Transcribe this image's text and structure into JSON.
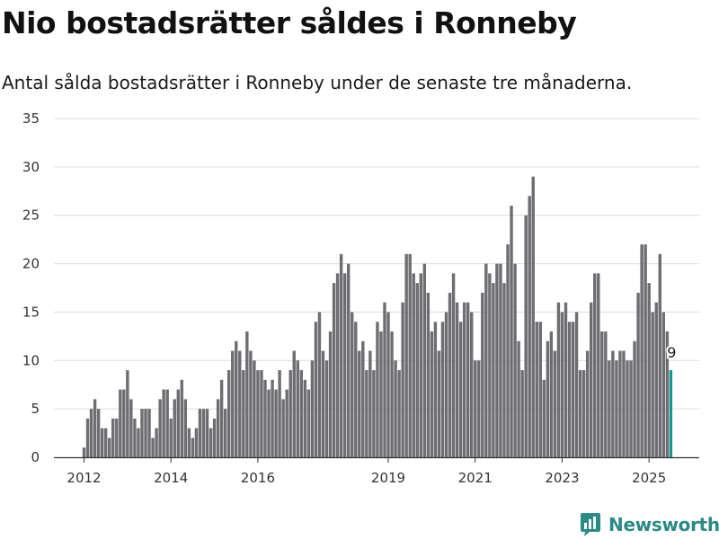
{
  "title": "Nio bostadsrätter såldes i Ronneby",
  "subtitle": "Antal sålda bostadsrätter i Ronneby under de senaste tre månaderna.",
  "brand": {
    "name": "Newsworthy",
    "icon": "newsworthy-logo-icon",
    "color": "#2a8a86"
  },
  "chart_data": {
    "type": "bar",
    "ylim": [
      0,
      35
    ],
    "yticks": [
      "0",
      "5",
      "10",
      "15",
      "20",
      "25",
      "30",
      "35"
    ],
    "xticks": [
      {
        "label": "2012",
        "month_index": 0
      },
      {
        "label": "2014",
        "month_index": 24
      },
      {
        "label": "2016",
        "month_index": 48
      },
      {
        "label": "2019",
        "month_index": 84
      },
      {
        "label": "2021",
        "month_index": 108
      },
      {
        "label": "2023",
        "month_index": 132
      },
      {
        "label": "2025",
        "month_index": 156
      }
    ],
    "start_month": "2012-01",
    "grid": true,
    "bar_color": "#6e6d72",
    "highlight_color": "#1a9590",
    "highlight_index": 162,
    "last_value_label": "9",
    "values": [
      1,
      4,
      5,
      6,
      5,
      3,
      3,
      2,
      4,
      4,
      7,
      7,
      9,
      6,
      4,
      3,
      5,
      5,
      5,
      2,
      3,
      6,
      7,
      7,
      4,
      6,
      7,
      8,
      6,
      3,
      2,
      3,
      5,
      5,
      5,
      3,
      4,
      6,
      8,
      5,
      9,
      11,
      12,
      11,
      9,
      13,
      11,
      10,
      9,
      9,
      8,
      7,
      8,
      7,
      9,
      6,
      7,
      9,
      11,
      10,
      9,
      8,
      7,
      10,
      14,
      15,
      11,
      10,
      13,
      18,
      19,
      21,
      19,
      20,
      15,
      14,
      11,
      12,
      9,
      11,
      9,
      14,
      13,
      16,
      15,
      13,
      10,
      9,
      16,
      21,
      21,
      19,
      18,
      19,
      20,
      17,
      13,
      14,
      11,
      14,
      15,
      17,
      19,
      16,
      14,
      16,
      16,
      15,
      10,
      10,
      17,
      20,
      19,
      18,
      20,
      20,
      18,
      22,
      26,
      20,
      12,
      9,
      25,
      27,
      29,
      14,
      14,
      8,
      12,
      13,
      11,
      16,
      15,
      16,
      14,
      14,
      15,
      9,
      9,
      11,
      16,
      19,
      19,
      13,
      13,
      10,
      11,
      10,
      11,
      11,
      10,
      10,
      12,
      17,
      22,
      22,
      18,
      15,
      16,
      21,
      15,
      13,
      9
    ]
  }
}
